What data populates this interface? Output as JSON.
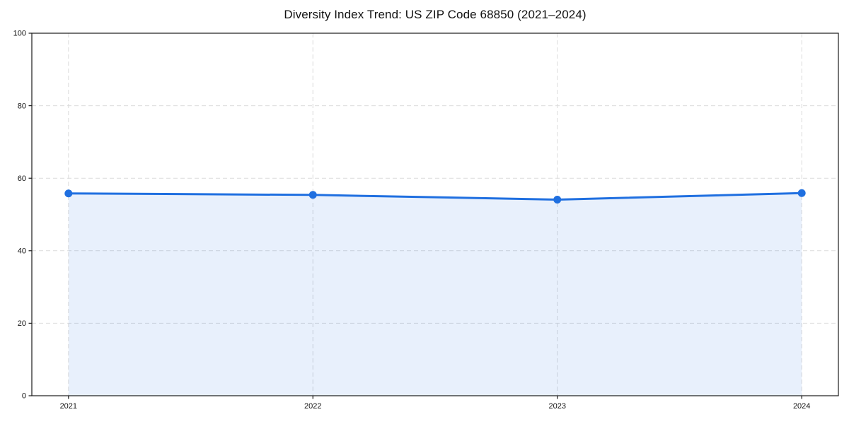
{
  "figure": {
    "title": "Diversity Index Trend: US ZIP Code 68850 (2021–2024)"
  },
  "colors": {
    "line": "#1f6fe0",
    "marker": "#1f6fe0",
    "area_fill": "rgba(31, 111, 224, 0.10)",
    "grid": "#dbdbdb",
    "spine": "#1a1a1a",
    "tick": "#1a1a1a",
    "text": "#111111",
    "background": "#ffffff"
  },
  "chart_data": {
    "type": "line",
    "title": "Diversity Index Trend: US ZIP Code 68850 (2021–2024)",
    "x": [
      2021,
      2022,
      2023,
      2024
    ],
    "series": [
      {
        "name": "Diversity Index",
        "values": [
          55.8,
          55.4,
          54.1,
          55.9
        ]
      }
    ],
    "xlabel": "",
    "ylabel": "",
    "xlim": [
      2020.85,
      2024.15
    ],
    "ylim": [
      0,
      100
    ],
    "xticks": [
      "2021",
      "2022",
      "2023",
      "2024"
    ],
    "yticks": [
      0,
      20,
      40,
      60,
      80,
      100
    ],
    "grid": true,
    "grid_style": "dashed",
    "legend": false,
    "markers": true,
    "marker_shape": "circle",
    "area_fill": true
  }
}
